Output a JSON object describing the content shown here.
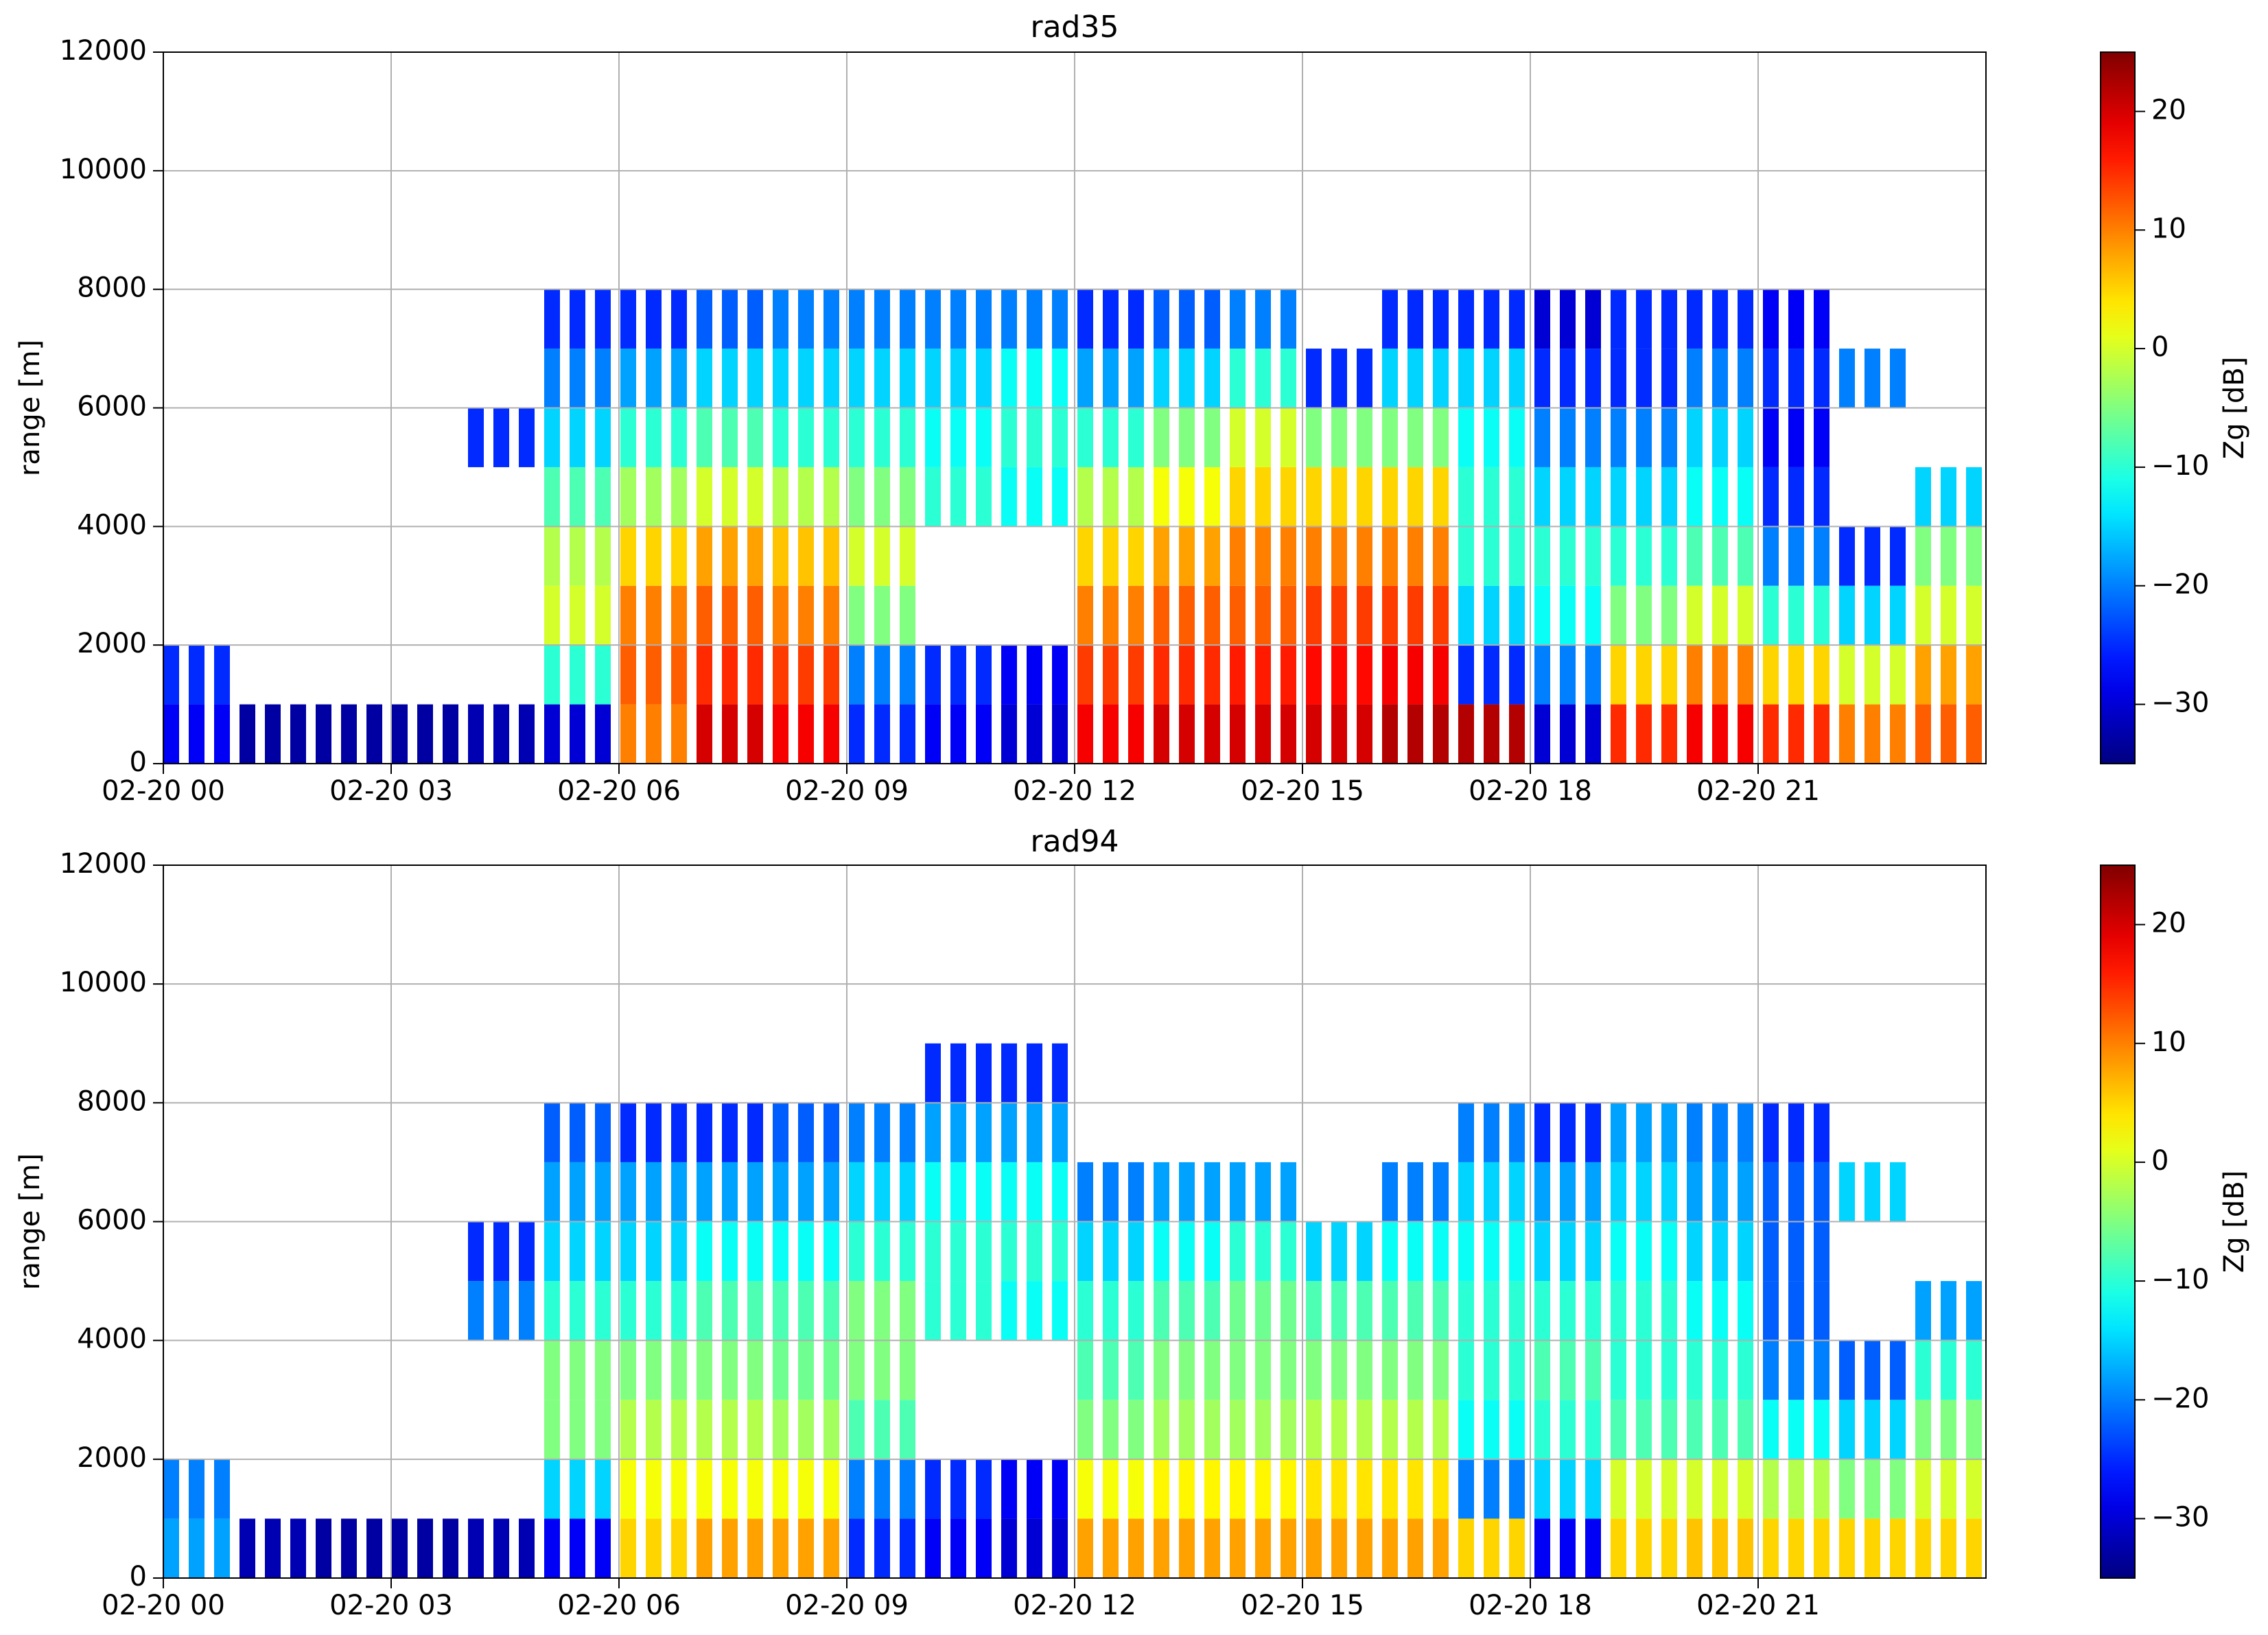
{
  "chart_data": [
    {
      "type": "heatmap",
      "title": "rad35",
      "ylabel": "range [m]",
      "colorbar_label": "Zg [dB]",
      "colormap": "jet",
      "grid": true,
      "xlim": [
        0,
        24
      ],
      "ylim": [
        0,
        12000
      ],
      "clim": [
        -35,
        25
      ],
      "xticks": [
        {
          "value": 0,
          "label": "02-20 00"
        },
        {
          "value": 3,
          "label": "02-20 03"
        },
        {
          "value": 6,
          "label": "02-20 06"
        },
        {
          "value": 9,
          "label": "02-20 09"
        },
        {
          "value": 12,
          "label": "02-20 12"
        },
        {
          "value": 15,
          "label": "02-20 15"
        },
        {
          "value": 18,
          "label": "02-20 18"
        },
        {
          "value": 21,
          "label": "02-20 21"
        }
      ],
      "yticks": [
        0,
        2000,
        4000,
        6000,
        8000,
        10000,
        12000
      ],
      "cticks": [
        {
          "value": -30,
          "label": "−30"
        },
        {
          "value": -20,
          "label": "−20"
        },
        {
          "value": -10,
          "label": "−10"
        },
        0,
        10,
        20
      ],
      "xbins": [
        0,
        1,
        2,
        3,
        4,
        5,
        6,
        7,
        8,
        9,
        10,
        11,
        12,
        13,
        14,
        15,
        16,
        17,
        18,
        19,
        20,
        21,
        22,
        23,
        24
      ],
      "ybins": [
        0,
        1000,
        2000,
        3000,
        4000,
        5000,
        6000,
        7000,
        8000,
        9000
      ],
      "z": [
        [
          -28,
          -33,
          -33,
          -33,
          -32,
          -30,
          10,
          20,
          18,
          -25,
          -28,
          -30,
          18,
          20,
          20,
          20,
          22,
          22,
          -30,
          15,
          18,
          15,
          10,
          12
        ],
        [
          -25,
          null,
          null,
          null,
          null,
          -10,
          12,
          15,
          14,
          -20,
          -25,
          -28,
          14,
          15,
          16,
          17,
          18,
          -25,
          -20,
          5,
          10,
          5,
          0,
          8
        ],
        [
          null,
          null,
          null,
          null,
          null,
          0,
          10,
          12,
          10,
          -5,
          null,
          null,
          10,
          12,
          12,
          14,
          14,
          -15,
          -12,
          -5,
          0,
          -10,
          -15,
          0
        ],
        [
          null,
          null,
          null,
          null,
          null,
          -2,
          5,
          8,
          6,
          0,
          null,
          null,
          5,
          8,
          10,
          10,
          10,
          -10,
          -10,
          -10,
          -8,
          -20,
          -25,
          -5
        ],
        [
          null,
          null,
          null,
          null,
          null,
          -8,
          -3,
          0,
          -2,
          -5,
          -10,
          -12,
          -2,
          2,
          5,
          5,
          5,
          -10,
          -15,
          -15,
          -12,
          -25,
          null,
          -15
        ],
        [
          null,
          null,
          null,
          null,
          -25,
          -15,
          -10,
          -8,
          -10,
          -10,
          -12,
          -10,
          -10,
          -5,
          0,
          -5,
          -5,
          -12,
          -20,
          -20,
          -15,
          -28,
          null,
          null
        ],
        [
          null,
          null,
          null,
          null,
          null,
          -20,
          -18,
          -15,
          -15,
          -15,
          -15,
          -12,
          -18,
          -15,
          -10,
          -25,
          -15,
          -15,
          -25,
          -25,
          -20,
          -25,
          -20,
          null
        ],
        [
          null,
          null,
          null,
          null,
          null,
          -25,
          -25,
          -22,
          -20,
          -20,
          -20,
          -20,
          -25,
          -22,
          -20,
          null,
          -25,
          -25,
          -30,
          -25,
          -25,
          -28,
          null,
          null
        ],
        [
          null,
          null,
          null,
          null,
          null,
          null,
          null,
          null,
          null,
          null,
          null,
          null,
          null,
          null,
          null,
          null,
          null,
          null,
          null,
          null,
          null,
          null,
          null,
          null
        ]
      ]
    },
    {
      "type": "heatmap",
      "title": "rad94",
      "ylabel": "range [m]",
      "colorbar_label": "Zg [dB]",
      "colormap": "jet",
      "grid": true,
      "xlim": [
        0,
        24
      ],
      "ylim": [
        0,
        12000
      ],
      "clim": [
        -35,
        25
      ],
      "xticks": [
        {
          "value": 0,
          "label": "02-20 00"
        },
        {
          "value": 3,
          "label": "02-20 03"
        },
        {
          "value": 6,
          "label": "02-20 06"
        },
        {
          "value": 9,
          "label": "02-20 09"
        },
        {
          "value": 12,
          "label": "02-20 12"
        },
        {
          "value": 15,
          "label": "02-20 15"
        },
        {
          "value": 18,
          "label": "02-20 18"
        },
        {
          "value": 21,
          "label": "02-20 21"
        }
      ],
      "yticks": [
        0,
        2000,
        4000,
        6000,
        8000,
        10000,
        12000
      ],
      "cticks": [
        {
          "value": -30,
          "label": "−30"
        },
        {
          "value": -20,
          "label": "−20"
        },
        {
          "value": -10,
          "label": "−10"
        },
        0,
        10,
        20
      ],
      "xbins": [
        0,
        1,
        2,
        3,
        4,
        5,
        6,
        7,
        8,
        9,
        10,
        11,
        12,
        13,
        14,
        15,
        16,
        17,
        18,
        19,
        20,
        21,
        22,
        23,
        24
      ],
      "ybins": [
        0,
        1000,
        2000,
        3000,
        4000,
        5000,
        6000,
        7000,
        8000,
        9000
      ],
      "z": [
        [
          -18,
          -32,
          -33,
          -33,
          -32,
          -28,
          5,
          8,
          8,
          -25,
          -28,
          -30,
          8,
          8,
          8,
          8,
          8,
          5,
          -28,
          5,
          6,
          5,
          5,
          5
        ],
        [
          -20,
          null,
          null,
          null,
          null,
          -15,
          2,
          2,
          2,
          -20,
          -25,
          -28,
          2,
          3,
          3,
          4,
          4,
          -20,
          -15,
          0,
          0,
          -2,
          -5,
          0
        ],
        [
          null,
          null,
          null,
          null,
          null,
          -5,
          -2,
          -2,
          -3,
          -8,
          null,
          null,
          -5,
          -3,
          -3,
          -2,
          -2,
          -12,
          -10,
          -8,
          -8,
          -12,
          -15,
          -5
        ],
        [
          null,
          null,
          null,
          null,
          null,
          -5,
          -5,
          -5,
          -6,
          -5,
          null,
          null,
          -8,
          -5,
          -5,
          -5,
          -5,
          -10,
          -8,
          -10,
          -10,
          -20,
          -22,
          -10
        ],
        [
          null,
          null,
          null,
          null,
          -20,
          -10,
          -10,
          -8,
          -8,
          -5,
          -10,
          -12,
          -10,
          -8,
          -6,
          -8,
          -8,
          -10,
          -10,
          -10,
          -12,
          -22,
          null,
          -18
        ],
        [
          null,
          null,
          null,
          null,
          -25,
          -15,
          -15,
          -12,
          -12,
          -10,
          -10,
          -10,
          -15,
          -12,
          -10,
          -15,
          -12,
          -12,
          -15,
          -12,
          -15,
          -22,
          null,
          null
        ],
        [
          null,
          null,
          null,
          null,
          null,
          -18,
          -18,
          -18,
          -18,
          -15,
          -12,
          -12,
          -20,
          -18,
          -18,
          null,
          -20,
          -15,
          -18,
          -15,
          -18,
          -22,
          -15,
          null
        ],
        [
          null,
          null,
          null,
          null,
          null,
          -22,
          -25,
          -25,
          -22,
          -20,
          -18,
          -18,
          null,
          null,
          null,
          null,
          null,
          -20,
          -25,
          -18,
          -20,
          -25,
          null,
          null
        ],
        [
          null,
          null,
          null,
          null,
          null,
          null,
          null,
          null,
          null,
          null,
          -25,
          -25,
          null,
          null,
          null,
          null,
          null,
          null,
          null,
          null,
          null,
          null,
          null,
          null
        ]
      ]
    }
  ]
}
